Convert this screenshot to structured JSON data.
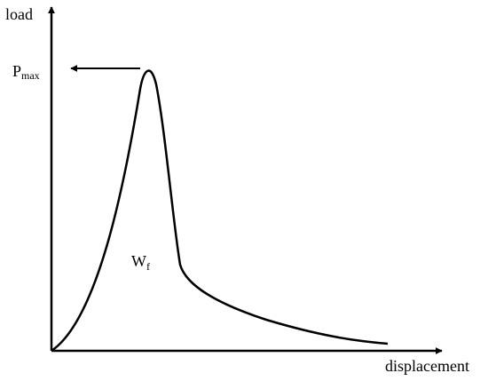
{
  "axes": {
    "y_label": "load",
    "x_label": "displacement"
  },
  "annotations": {
    "peak": {
      "main": "P",
      "subscript": "max"
    },
    "area": {
      "main": "W",
      "subscript": "f"
    }
  }
}
